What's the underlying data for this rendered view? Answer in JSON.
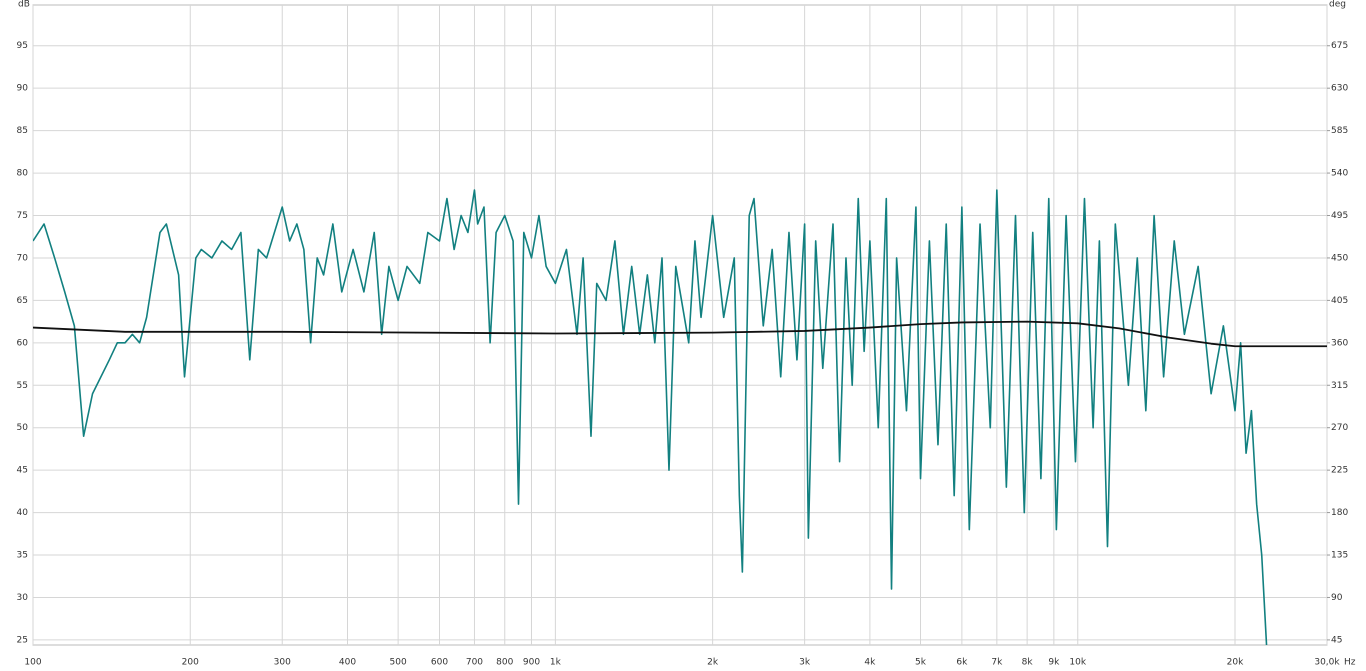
{
  "chart_data": {
    "type": "line",
    "ylabel": "dB",
    "y2label": "deg",
    "xlabel": "Hz",
    "log_x": true,
    "grid": true,
    "xlim": [
      100,
      30000
    ],
    "ylim": [
      24.4,
      99.8
    ],
    "y2lim": [
      39.6,
      718.2
    ],
    "xticks": [
      100,
      200,
      300,
      400,
      500,
      600,
      700,
      800,
      900,
      {
        "value": 1000,
        "label": "1k"
      },
      {
        "value": 2000,
        "label": "2k"
      },
      {
        "value": 3000,
        "label": "3k"
      },
      {
        "value": 4000,
        "label": "4k"
      },
      {
        "value": 5000,
        "label": "5k"
      },
      {
        "value": 6000,
        "label": "6k"
      },
      {
        "value": 7000,
        "label": "7k"
      },
      {
        "value": 8000,
        "label": "8k"
      },
      {
        "value": 9000,
        "label": "9k"
      },
      {
        "value": 10000,
        "label": "10k"
      },
      {
        "value": 20000,
        "label": "20k"
      },
      {
        "value": 30000,
        "label": "30,0k"
      }
    ],
    "yticks": [
      25,
      30,
      35,
      40,
      45,
      50,
      55,
      60,
      65,
      70,
      75,
      80,
      85,
      90,
      95
    ],
    "y2ticks": [
      45,
      90,
      135,
      180,
      225,
      270,
      315,
      360,
      405,
      450,
      495,
      540,
      585,
      630,
      675
    ],
    "series": [
      {
        "color": "#128080",
        "x": [
          100,
          105,
          110,
          115,
          120,
          125,
          130,
          140,
          145,
          150,
          155,
          160,
          165,
          175,
          180,
          190,
          195,
          205,
          210,
          220,
          230,
          240,
          250,
          260,
          270,
          280,
          300,
          310,
          320,
          330,
          340,
          350,
          360,
          375,
          390,
          410,
          430,
          450,
          465,
          480,
          500,
          520,
          550,
          570,
          600,
          620,
          640,
          660,
          680,
          700,
          710,
          730,
          750,
          770,
          800,
          830,
          850,
          870,
          900,
          930,
          960,
          1000,
          1050,
          1100,
          1130,
          1170,
          1200,
          1250,
          1300,
          1350,
          1400,
          1450,
          1500,
          1550,
          1600,
          1650,
          1700,
          1800,
          1850,
          1900,
          2000,
          2100,
          2200,
          2250,
          2280,
          2350,
          2400,
          2500,
          2600,
          2700,
          2800,
          2900,
          3000,
          3050,
          3150,
          3250,
          3400,
          3500,
          3600,
          3700,
          3800,
          3900,
          4000,
          4150,
          4300,
          4400,
          4500,
          4700,
          4900,
          5000,
          5200,
          5400,
          5600,
          5800,
          6000,
          6200,
          6500,
          6800,
          7000,
          7300,
          7600,
          7900,
          8200,
          8500,
          8800,
          9100,
          9500,
          9900,
          10300,
          10700,
          11000,
          11400,
          11800,
          12500,
          13000,
          13500,
          14000,
          14600,
          15300,
          16000,
          17000,
          18000,
          19000,
          20000,
          20500,
          21000,
          21500,
          22000,
          22500,
          23000
        ],
        "values": [
          72,
          74,
          70,
          66,
          62,
          49,
          54,
          58,
          60,
          60,
          61,
          60,
          63,
          73,
          74,
          68,
          56,
          70,
          71,
          70,
          72,
          71,
          73,
          58,
          71,
          70,
          76,
          72,
          74,
          71,
          60,
          70,
          68,
          74,
          66,
          71,
          66,
          73,
          61,
          69,
          65,
          69,
          67,
          73,
          72,
          77,
          71,
          75,
          73,
          78,
          74,
          76,
          60,
          73,
          75,
          72,
          41,
          73,
          70,
          75,
          69,
          67,
          71,
          61,
          70,
          49,
          67,
          65,
          72,
          61,
          69,
          61,
          68,
          60,
          70,
          45,
          69,
          60,
          72,
          63,
          75,
          63,
          70,
          42,
          33,
          75,
          77,
          62,
          71,
          56,
          73,
          58,
          74,
          37,
          72,
          57,
          74,
          46,
          70,
          55,
          77,
          59,
          72,
          50,
          77,
          31,
          70,
          52,
          76,
          44,
          72,
          48,
          74,
          42,
          76,
          38,
          74,
          50,
          78,
          43,
          75,
          40,
          73,
          44,
          77,
          38,
          75,
          46,
          77,
          50,
          72,
          36,
          74,
          55,
          70,
          52,
          75,
          56,
          72,
          61,
          69,
          54,
          62,
          52,
          60,
          47,
          52,
          41,
          35,
          24
        ]
      },
      {
        "color": "#111111",
        "x": [
          100,
          150,
          300,
          1000,
          2000,
          3000,
          4000,
          5000,
          6000,
          8000,
          10000,
          12000,
          15000,
          18000,
          20000,
          30000
        ],
        "values": [
          61.8,
          61.3,
          61.3,
          61.1,
          61.2,
          61.4,
          61.8,
          62.2,
          62.4,
          62.5,
          62.3,
          61.7,
          60.6,
          59.9,
          59.6,
          59.6
        ]
      }
    ]
  }
}
